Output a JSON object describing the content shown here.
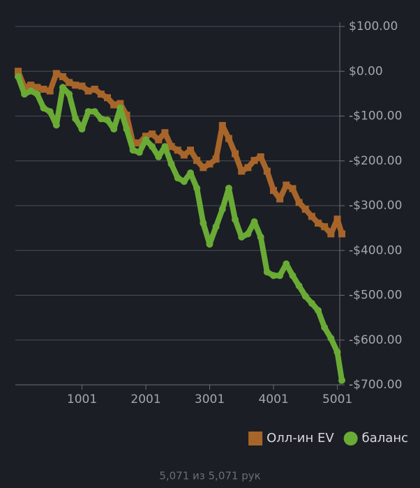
{
  "chart_data": {
    "type": "line",
    "x": [
      1,
      100,
      200,
      300,
      400,
      500,
      600,
      700,
      800,
      900,
      1000,
      1100,
      1200,
      1300,
      1400,
      1500,
      1600,
      1700,
      1800,
      1900,
      2000,
      2100,
      2200,
      2300,
      2400,
      2500,
      2600,
      2700,
      2800,
      2900,
      3000,
      3100,
      3200,
      3300,
      3400,
      3500,
      3600,
      3700,
      3800,
      3900,
      4000,
      4100,
      4200,
      4300,
      4400,
      4500,
      4600,
      4700,
      4800,
      4900,
      5000,
      5071
    ],
    "series": [
      {
        "name": "Олл-ин EV",
        "color": "#a8652a",
        "marker": "square",
        "values": [
          0,
          -36,
          -31,
          -36,
          -40,
          -44,
          -5,
          -12,
          -25,
          -31,
          -33,
          -44,
          -40,
          -51,
          -59,
          -75,
          -72,
          -98,
          -160,
          -160,
          -145,
          -140,
          -153,
          -137,
          -168,
          -176,
          -187,
          -176,
          -199,
          -215,
          -207,
          -196,
          -121,
          -150,
          -184,
          -223,
          -215,
          -199,
          -191,
          -223,
          -266,
          -285,
          -254,
          -262,
          -293,
          -308,
          -324,
          -339,
          -347,
          -363,
          -330,
          -363
        ]
      },
      {
        "name": "баланс",
        "color": "#6aab35",
        "marker": "circle",
        "values": [
          -12,
          -51,
          -44,
          -51,
          -82,
          -90,
          -120,
          -36,
          -51,
          -106,
          -129,
          -90,
          -90,
          -106,
          -109,
          -129,
          -82,
          -129,
          -176,
          -181,
          -153,
          -168,
          -191,
          -168,
          -207,
          -238,
          -246,
          -227,
          -261,
          -339,
          -386,
          -347,
          -308,
          -261,
          -331,
          -370,
          -363,
          -336,
          -370,
          -448,
          -456,
          -456,
          -430,
          -456,
          -479,
          -502,
          -518,
          -534,
          -572,
          -596,
          -627,
          -690
        ]
      }
    ],
    "xlim": [
      1,
      5071
    ],
    "xticks": [
      1001,
      2001,
      3001,
      4001,
      5001
    ],
    "ylim": [
      -700,
      100
    ],
    "yticks": [
      {
        "value": 100,
        "label": "$100.00"
      },
      {
        "value": 0,
        "label": "$0.00"
      },
      {
        "value": -100,
        "label": "-$100.00"
      },
      {
        "value": -200,
        "label": "-$200.00"
      },
      {
        "value": -300,
        "label": "-$300.00"
      },
      {
        "value": -400,
        "label": "-$400.00"
      },
      {
        "value": -500,
        "label": "-$500.00"
      },
      {
        "value": -600,
        "label": "-$600.00"
      },
      {
        "value": -700,
        "label": "-$700.00"
      }
    ],
    "grid": true,
    "legend": "bottom-right",
    "footer": "5,071 из 5,071 рук"
  }
}
